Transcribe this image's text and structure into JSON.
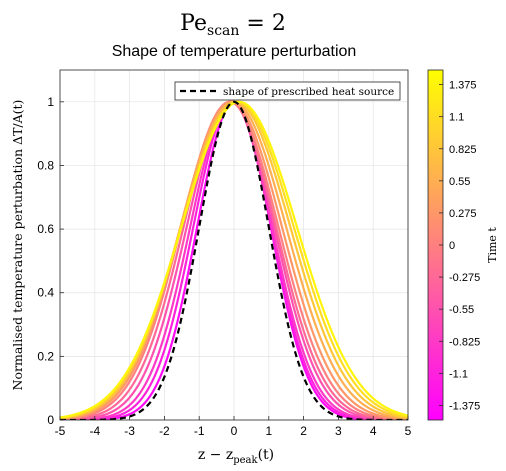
{
  "figure": {
    "super_title": "Pe",
    "super_title_sub": "scan",
    "super_title_rest": " = 2"
  },
  "chart_data": {
    "type": "line",
    "title": "Shape of temperature perturbation",
    "xlabel": "z − z",
    "xlabel_sub": "peak",
    "xlabel_rest": "(t)",
    "ylabel": "Normalised temperature perturbation ΔT/A(t)",
    "xlim": [
      -5,
      5
    ],
    "ylim": [
      0,
      1.1
    ],
    "xticks": [
      -5,
      -4,
      -3,
      -2,
      -1,
      0,
      1,
      2,
      3,
      4,
      5
    ],
    "xtick_labels": [
      "-5",
      "-4",
      "-3",
      "-2",
      "-1",
      "0",
      "1",
      "2",
      "3",
      "4",
      "5"
    ],
    "yticks": [
      0,
      0.2,
      0.4,
      0.6,
      0.8,
      1
    ],
    "ytick_labels": [
      "0",
      "0.2",
      "0.4",
      "0.6",
      "0.8",
      "1"
    ],
    "grid": true,
    "legend": {
      "placement": "top-right",
      "entries": [
        "shape of prescribed heat source"
      ]
    },
    "source_curve": {
      "name": "shape of prescribed heat source",
      "style": "dashed",
      "color": "#000000",
      "sigma": 1.0
    },
    "time_series": [
      {
        "time": -1.375,
        "sigma": 1.06,
        "shift": 0.0
      },
      {
        "time": -1.1,
        "sigma": 1.12,
        "shift": -0.05
      },
      {
        "time": -0.825,
        "sigma": 1.18,
        "shift": -0.08
      },
      {
        "time": -0.55,
        "sigma": 1.26,
        "shift": -0.1
      },
      {
        "time": -0.275,
        "sigma": 1.33,
        "shift": -0.12
      },
      {
        "time": 0,
        "sigma": 1.4,
        "shift": -0.12
      },
      {
        "time": 0.275,
        "sigma": 1.46,
        "shift": -0.08
      },
      {
        "time": 0.55,
        "sigma": 1.52,
        "shift": -0.02
      },
      {
        "time": 0.825,
        "sigma": 1.57,
        "shift": 0.05
      },
      {
        "time": 1.1,
        "sigma": 1.62,
        "shift": 0.1
      },
      {
        "time": 1.375,
        "sigma": 1.66,
        "shift": 0.15
      }
    ],
    "colorbar": {
      "label": "Time t",
      "range": [
        -1.5,
        1.5
      ],
      "color_min": "#ff00ff",
      "color_max": "#ffff00",
      "ticks": [
        1.375,
        1.1,
        0.825,
        0.55,
        0.275,
        0,
        -0.275,
        -0.55,
        -0.825,
        -1.1,
        -1.375
      ],
      "tick_labels": [
        "1.375",
        "1.1",
        "0.825",
        "0.55",
        "0.275",
        "0",
        "-0.275",
        "-0.55",
        "-0.825",
        "-1.1",
        "-1.375"
      ]
    }
  }
}
